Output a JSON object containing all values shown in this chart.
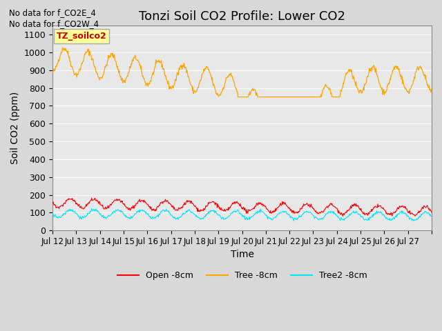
{
  "title": "Tonzi Soil CO2 Profile: Lower CO2",
  "ylabel": "Soil CO2 (ppm)",
  "xlabel": "Time",
  "annotation_lines": [
    "No data for f_CO2E_4",
    "No data for f_CO2W_4"
  ],
  "legend_box_label": "TZ_soilco2",
  "x_tick_labels": [
    "Jul 12",
    "Jul 13",
    "Jul 14",
    "Jul 15",
    "Jul 16",
    "Jul 17",
    "Jul 18",
    "Jul 19",
    "Jul 20",
    "Jul 21",
    "Jul 22",
    "Jul 23",
    "Jul 24",
    "Jul 25",
    "Jul 26",
    "Jul 27"
  ],
  "ylim": [
    0,
    1150
  ],
  "yticks": [
    0,
    100,
    200,
    300,
    400,
    500,
    600,
    700,
    800,
    900,
    1000,
    1100
  ],
  "bg_color": "#d8d8d8",
  "plot_bg_color": "#e8e8e8",
  "grid_color": "#ffffff",
  "open_color": "#ff0000",
  "tree_color": "#ffa500",
  "tree2_color": "#00e5ff",
  "title_fontsize": 13,
  "axis_fontsize": 10,
  "tick_fontsize": 9,
  "legend_label_open": "Open -8cm",
  "legend_label_tree": "Tree -8cm",
  "legend_label_tree2": "Tree2 -8cm"
}
